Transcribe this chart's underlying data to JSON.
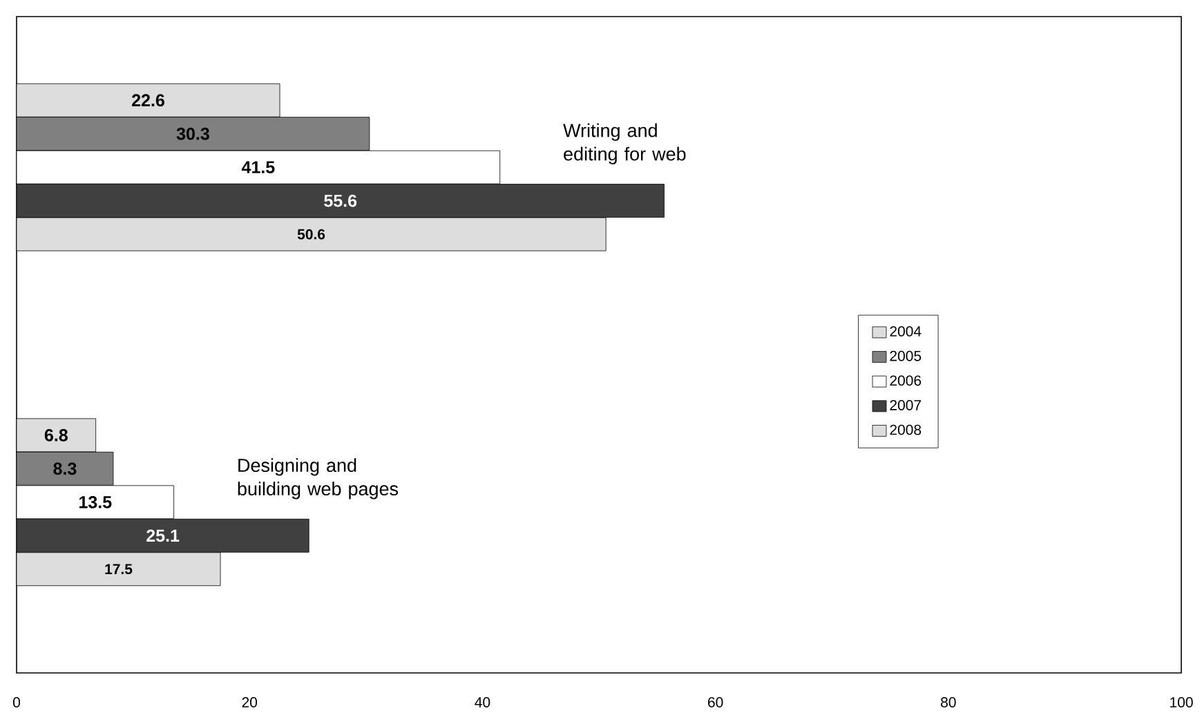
{
  "chart_data": {
    "type": "bar",
    "orientation": "horizontal",
    "categories": [
      "Writing and editing for web",
      "Designing and building web pages"
    ],
    "series": [
      {
        "name": "2004",
        "color": "#dddddd",
        "values": [
          22.6,
          6.8
        ]
      },
      {
        "name": "2005",
        "color": "#808080",
        "values": [
          30.3,
          8.3
        ]
      },
      {
        "name": "2006",
        "color": "#ffffff",
        "values": [
          41.5,
          13.5
        ]
      },
      {
        "name": "2007",
        "color": "#404040",
        "values": [
          55.6,
          25.1
        ]
      },
      {
        "name": "2008",
        "color": "#dddddd",
        "values": [
          50.6,
          17.5
        ]
      }
    ],
    "xlim": [
      0,
      100
    ],
    "xticks": [
      0,
      20,
      40,
      60,
      80,
      100
    ],
    "data_labels": true,
    "legend": "right",
    "grid": false
  }
}
